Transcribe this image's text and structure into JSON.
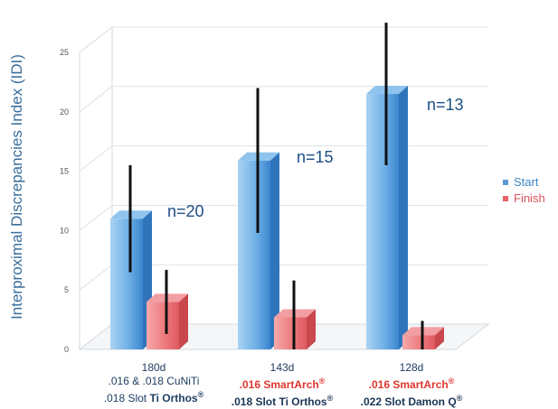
{
  "chart_data": {
    "type": "bar",
    "ylabel": "Interproximal Discrepancies Index (IDI)",
    "ylim": [
      0,
      25
    ],
    "yticks": [
      0,
      5,
      10,
      15,
      20,
      25
    ],
    "grid": true,
    "legend_position": "right",
    "categories": [
      {
        "line1": "180d",
        "line2": ".016 & .018 CuNiTi",
        "line3_plain": ".018 Slot ",
        "line3_bold": "Ti Orthos",
        "mark": "®"
      },
      {
        "line1": "143d",
        "line2": ".016 SmartArch",
        "line2_mark": "®",
        "line3_plain": "",
        "line3_bold": ".018 Slot Ti Orthos",
        "mark": "®"
      },
      {
        "line1": "128d",
        "line2": ".016 SmartArch",
        "line2_mark": "®",
        "line3_plain": "",
        "line3_bold": ".022 Slot Damon Q",
        "mark": "®"
      }
    ],
    "series": [
      {
        "name": "Start",
        "values": [
          11,
          15.9,
          21.5
        ],
        "error": [
          4.5,
          6.1,
          6.0
        ],
        "color": "#5b9bd5"
      },
      {
        "name": "Finish",
        "values": [
          4,
          2.7,
          1.2
        ],
        "error": [
          2.7,
          3.1,
          1.2
        ],
        "color": "#e8636a"
      }
    ],
    "annotations": [
      "n=20",
      "n=15",
      "n=13"
    ]
  }
}
